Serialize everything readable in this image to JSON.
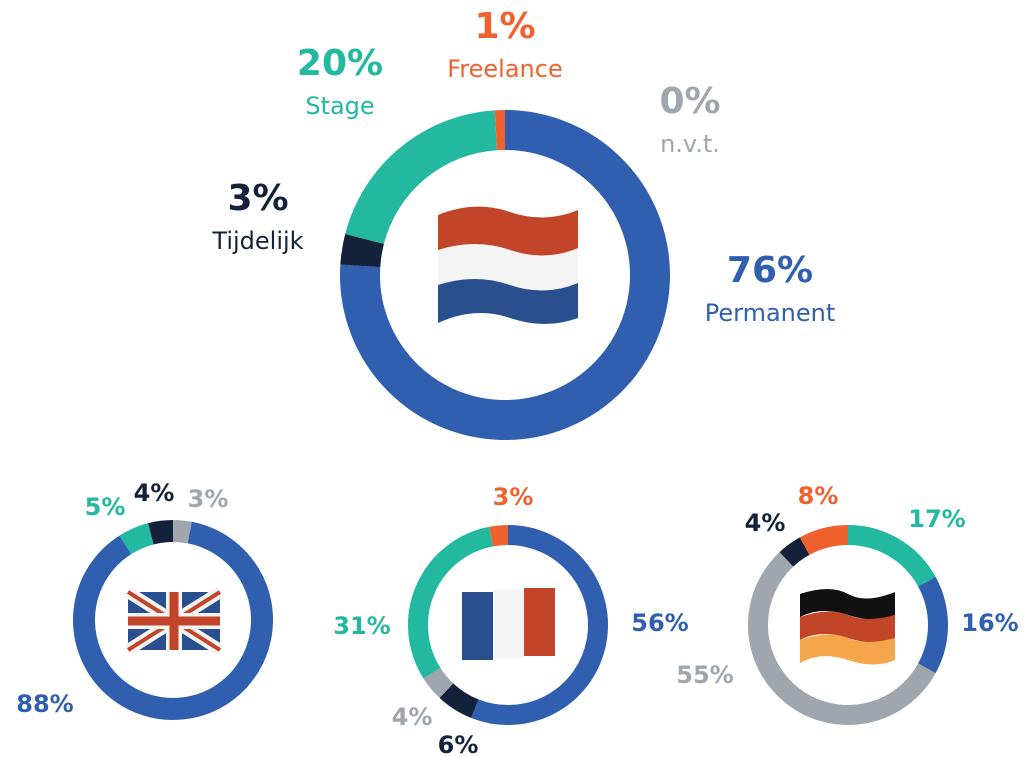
{
  "chart_data": [
    {
      "type": "pie",
      "categories": [
        "Permanent",
        "Tijdelijk",
        "Stage",
        "Freelance",
        "n.v.t."
      ],
      "values": [
        76,
        3,
        20,
        1,
        0
      ],
      "value_labels": [
        "76%",
        "3%",
        "20%",
        "1%",
        "0%"
      ],
      "colors": [
        "#2f5fae",
        "#13213a",
        "#22b9a0",
        "#f0622d",
        "#a0a6ad"
      ]
    },
    {
      "type": "pie",
      "values": [
        88,
        5,
        4,
        3
      ],
      "value_labels": [
        "88%",
        "5%",
        "4%",
        "3%"
      ],
      "colors": [
        "#2f5fae",
        "#22b9a0",
        "#13213a",
        "#a0a6ad"
      ]
    },
    {
      "type": "pie",
      "values": [
        56,
        6,
        4,
        31,
        3
      ],
      "value_labels": [
        "56%",
        "6%",
        "4%",
        "31%",
        "3%"
      ],
      "colors": [
        "#2f5fae",
        "#13213a",
        "#a0a6ad",
        "#22b9a0",
        "#f0622d"
      ]
    },
    {
      "type": "pie",
      "values": [
        17,
        16,
        55,
        4,
        8
      ],
      "value_labels": [
        "17%",
        "16%",
        "55%",
        "4%",
        "8%"
      ],
      "colors": [
        "#22b9a0",
        "#2f5fae",
        "#a0a6ad",
        "#13213a",
        "#f0622d"
      ]
    }
  ]
}
